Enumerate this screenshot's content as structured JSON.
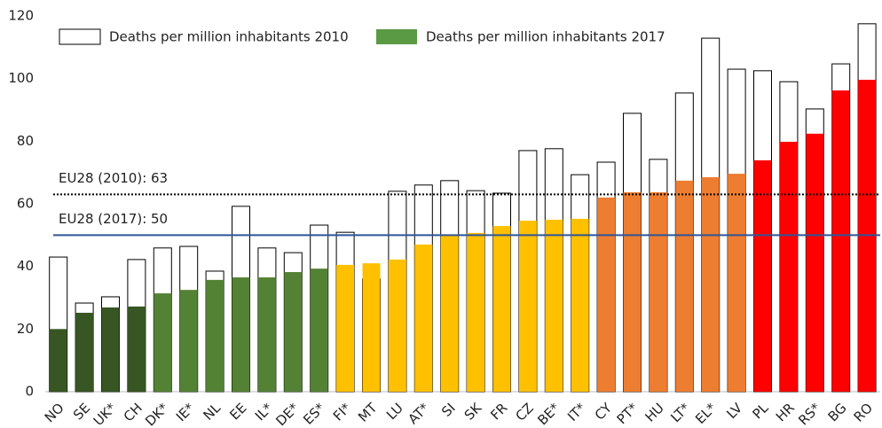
{
  "chart_data": {
    "type": "bar",
    "categories": [
      "NO",
      "SE",
      "UK*",
      "CH",
      "DK*",
      "IE*",
      "NL",
      "EE",
      "IL*",
      "DE*",
      "ES*",
      "FI*",
      "MT",
      "LU",
      "AT*",
      "SI",
      "SK",
      "FR",
      "CZ",
      "BE*",
      "IT*",
      "CY",
      "PT*",
      "HU",
      "LT*",
      "EL*",
      "LV",
      "PL",
      "HR",
      "RS*",
      "BG",
      "RO"
    ],
    "series": [
      {
        "name": "Deaths per million inhabitants 2010",
        "color": "#ffffff",
        "stroke": "#000000",
        "values": [
          43,
          28.3,
          30.3,
          42.2,
          45.9,
          46.4,
          38.5,
          59.2,
          45.9,
          44.4,
          53.2,
          50.9,
          36,
          64,
          66,
          67.4,
          64.2,
          63.4,
          77,
          77.6,
          69.3,
          73.3,
          88.9,
          74.2,
          95.4,
          112.9,
          103,
          102.5,
          99,
          90.3,
          104.7,
          117.5
        ]
      },
      {
        "name": "Deaths per million inhabitants 2017",
        "color": "#5b9a45",
        "colors": [
          "#375623",
          "#375623",
          "#375623",
          "#375623",
          "#548235",
          "#548235",
          "#548235",
          "#548235",
          "#548235",
          "#548235",
          "#548235",
          "#ffc000",
          "#ffc000",
          "#ffc000",
          "#ffc000",
          "#ffc000",
          "#ffc000",
          "#ffc000",
          "#ffc000",
          "#ffc000",
          "#ffc000",
          "#ed7d31",
          "#ed7d31",
          "#ed7d31",
          "#ed7d31",
          "#ed7d31",
          "#ed7d31",
          "#ff0000",
          "#ff0000",
          "#ff0000",
          "#ff0000",
          "#ff0000"
        ],
        "values": [
          20,
          25.2,
          26.9,
          27.2,
          31.4,
          32.5,
          35.7,
          36.5,
          36.5,
          38.2,
          39.3,
          40.5,
          41,
          42.2,
          47,
          50.1,
          50.7,
          52.9,
          54.6,
          54.9,
          55.2,
          62,
          63.7,
          63.7,
          67.4,
          68.5,
          69.6,
          73.9,
          79.8,
          82.4,
          96.2,
          99.6
        ]
      }
    ],
    "reference_lines": [
      {
        "label": "EU28 (2010): 63",
        "value": 63,
        "style": "dotted",
        "color": "#000000"
      },
      {
        "label": "EU28 (2017): 50",
        "value": 50,
        "style": "solid",
        "color": "#2f5597"
      }
    ],
    "ylim": [
      0,
      120
    ],
    "yticks": [
      0,
      20,
      40,
      60,
      80,
      100,
      120
    ],
    "grid": false,
    "legend": "top-left"
  }
}
